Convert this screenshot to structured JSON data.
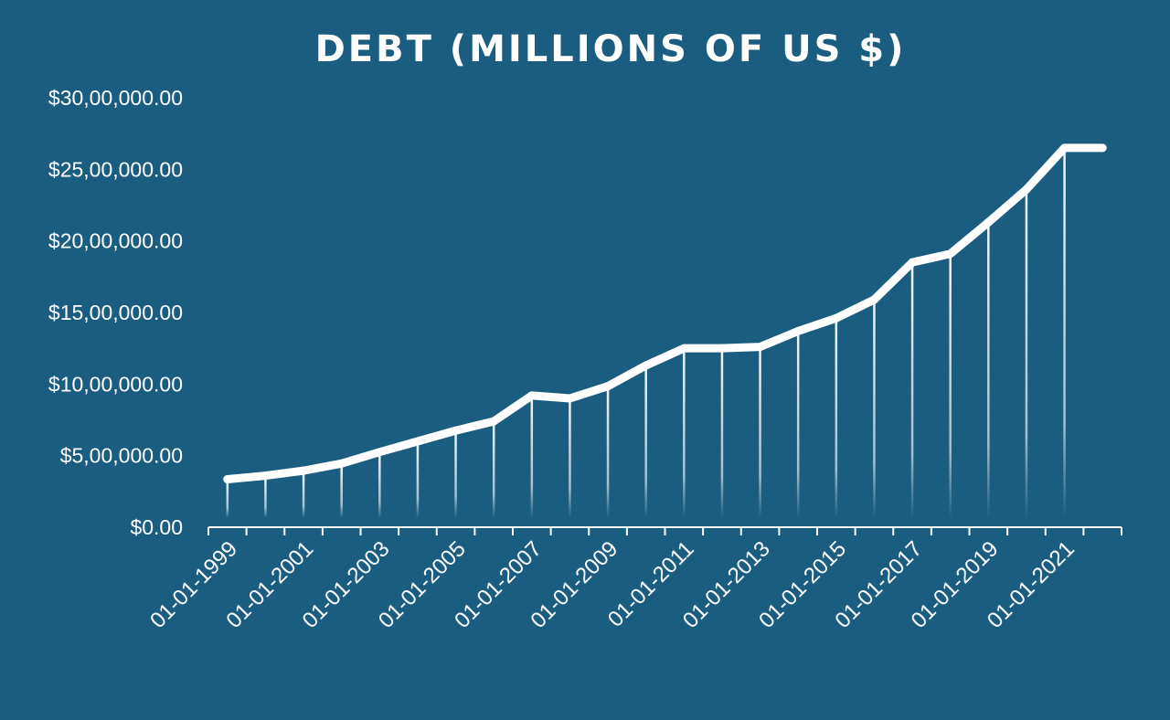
{
  "chart_data": {
    "type": "line",
    "title": "DEBT (MILLIONS OF US $)",
    "xlabel": "",
    "ylabel": "",
    "ylim": [
      0,
      3000000
    ],
    "yticks": [
      "$0.00",
      "$5,00,000.00",
      "$10,00,000.00",
      "$15,00,000.00",
      "$20,00,000.00",
      "$25,00,000.00",
      "$30,00,000.00"
    ],
    "xticks": [
      "01-01-1999",
      "01-01-2001",
      "01-01-2003",
      "01-01-2005",
      "01-01-2007",
      "01-01-2009",
      "01-01-2011",
      "01-01-2013",
      "01-01-2015",
      "01-01-2017",
      "01-01-2019",
      "01-01-2021"
    ],
    "x": [
      "01-01-1999",
      "01-01-2000",
      "01-01-2001",
      "01-01-2002",
      "01-01-2003",
      "01-01-2004",
      "01-01-2005",
      "01-01-2006",
      "01-01-2007",
      "01-01-2008",
      "01-01-2009",
      "01-01-2010",
      "01-01-2011",
      "01-01-2012",
      "01-01-2013",
      "01-01-2014",
      "01-01-2015",
      "01-01-2016",
      "01-01-2017",
      "01-01-2018",
      "01-01-2019",
      "01-01-2020",
      "01-01-2021",
      "01-01-2022"
    ],
    "values": [
      335000,
      360000,
      395000,
      445000,
      525000,
      600000,
      675000,
      740000,
      920000,
      900000,
      985000,
      1130000,
      1250000,
      1250000,
      1260000,
      1370000,
      1460000,
      1590000,
      1850000,
      1910000,
      2130000,
      2360000,
      2650000,
      2650000
    ],
    "grid": false,
    "drop_lines": true,
    "colors": {
      "background": "#1b5d80",
      "line": "#ffffff",
      "text": "#ffffff"
    }
  }
}
